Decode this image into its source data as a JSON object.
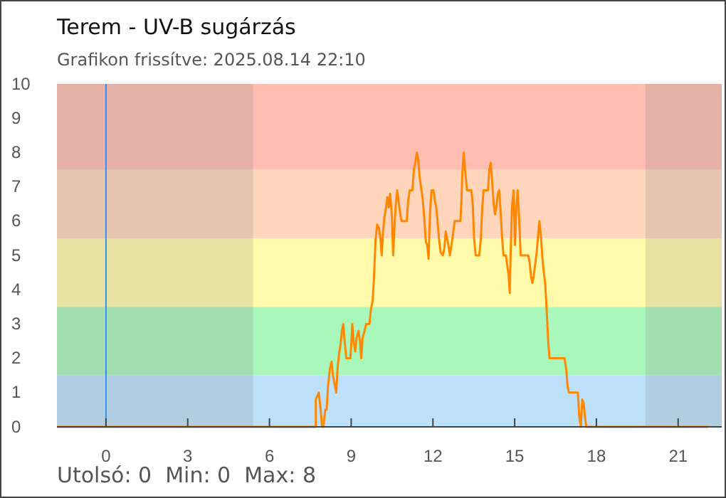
{
  "chart_data": {
    "type": "line",
    "title": "Terem - UV-B sugárzás",
    "subtitle": "Grafikon frissítve: 2025.08.14 22:10",
    "annotations": [
      "Utolsó: 0  Min: 0  Max: 8"
    ],
    "xlim": [
      -1.8,
      22.6
    ],
    "xticks": [
      0,
      3,
      6,
      9,
      12,
      15,
      18,
      21
    ],
    "ylim": [
      0,
      10
    ],
    "yticks": [
      0,
      1,
      2,
      3,
      4,
      5,
      6,
      7,
      8,
      9,
      10
    ],
    "grid": false,
    "line_style": "solid",
    "marker": "none",
    "bands": [
      {
        "axis": "y",
        "from": 0,
        "to": 1.5,
        "color": "#bde0fb"
      },
      {
        "axis": "y",
        "from": 1.5,
        "to": 3.5,
        "color": "#aaf7bb"
      },
      {
        "axis": "y",
        "from": 3.5,
        "to": 5.5,
        "color": "#fffbaa"
      },
      {
        "axis": "y",
        "from": 5.5,
        "to": 7.5,
        "color": "#ffd5bc"
      },
      {
        "axis": "y",
        "from": 7.5,
        "to": 10,
        "color": "#ffbcb0"
      },
      {
        "axis": "x",
        "from": -1.8,
        "to": 5.4,
        "color": "#8a8a8a"
      },
      {
        "axis": "x",
        "from": 19.8,
        "to": 22.6,
        "color": "#8a8a8a"
      }
    ],
    "ref_lines": [
      {
        "axis": "x",
        "value": 0,
        "color": "#3a8ee6"
      }
    ],
    "series": [
      {
        "color": "#ff8800",
        "x": [
          -1.8,
          7.7,
          7.7,
          7.81,
          7.88,
          7.93,
          7.98,
          8.05,
          8.1,
          8.15,
          8.22,
          8.28,
          8.33,
          8.4,
          8.45,
          8.5,
          8.55,
          8.61,
          8.66,
          8.71,
          8.76,
          8.82,
          8.97,
          9.01,
          9.04,
          9.09,
          9.15,
          9.2,
          9.27,
          9.32,
          9.37,
          9.42,
          9.49,
          9.55,
          9.67,
          9.72,
          9.79,
          9.84,
          9.89,
          9.95,
          10.02,
          10.07,
          10.12,
          10.17,
          10.22,
          10.28,
          10.33,
          10.38,
          10.43,
          10.49,
          10.54,
          10.59,
          10.64,
          10.69,
          10.75,
          10.8,
          10.85,
          11.04,
          11.09,
          11.15,
          11.25,
          11.3,
          11.35,
          11.41,
          11.46,
          11.51,
          11.58,
          11.63,
          11.69,
          11.74,
          11.79,
          11.84,
          11.89,
          11.95,
          12.02,
          12.07,
          12.12,
          12.17,
          12.22,
          12.28,
          12.36,
          12.42,
          12.47,
          12.52,
          12.57,
          12.62,
          12.68,
          12.75,
          12.8,
          13.01,
          13.04,
          13.08,
          13.13,
          13.18,
          13.25,
          13.41,
          13.46,
          13.51,
          13.57,
          13.7,
          13.76,
          13.81,
          13.86,
          14.02,
          14.07,
          14.12,
          14.17,
          14.23,
          14.28,
          14.33,
          14.38,
          14.43,
          14.49,
          14.54,
          14.59,
          14.68,
          14.73,
          14.78,
          14.82,
          14.85,
          14.9,
          14.96,
          15.01,
          15.06,
          15.11,
          15.17,
          15.22,
          15.5,
          15.55,
          15.6,
          15.65,
          15.7,
          15.76,
          15.81,
          15.86,
          15.91,
          15.97,
          16.02,
          16.07,
          16.12,
          16.17,
          16.23,
          16.28,
          16.83,
          16.89,
          16.94,
          16.99,
          17.32,
          17.37,
          17.43,
          17.48,
          17.53,
          17.58,
          17.63,
          22.1
        ],
        "values": [
          0,
          0,
          0.8,
          1,
          0.5,
          0,
          0,
          0.5,
          0.5,
          1.2,
          1.7,
          1.9,
          1.5,
          1.2,
          1,
          1.7,
          2.1,
          2.4,
          2.8,
          3,
          2.5,
          2,
          2,
          2.5,
          3,
          2.5,
          2.2,
          2.6,
          2.8,
          2.5,
          2,
          2.6,
          2.8,
          3,
          3,
          3.4,
          3.7,
          4.4,
          5.4,
          5.9,
          5.8,
          5.5,
          5,
          5.7,
          6.1,
          6.4,
          6.7,
          6.4,
          6.8,
          6.2,
          5,
          5.9,
          6.5,
          6.9,
          6.5,
          6.2,
          6,
          6,
          6.6,
          6.9,
          6.9,
          7.5,
          7.7,
          8,
          7.8,
          7.3,
          6.9,
          6.6,
          6,
          5.4,
          5.3,
          4.9,
          6.2,
          6.9,
          6.9,
          6.6,
          6.4,
          6,
          5.5,
          5.1,
          5,
          5.2,
          5.7,
          5.5,
          5.3,
          5,
          5.3,
          5.7,
          6,
          6,
          6.5,
          7.4,
          8,
          7.5,
          6.9,
          6.9,
          6.5,
          5.5,
          5,
          5,
          5.5,
          6.4,
          6.9,
          6.9,
          7.5,
          7.7,
          7.2,
          6.5,
          6.2,
          6.4,
          6.8,
          6.9,
          6.2,
          5.5,
          5,
          5,
          4.7,
          4.4,
          3.9,
          5,
          6.4,
          6.9,
          5.3,
          6.4,
          6.9,
          6,
          5,
          5,
          4.8,
          4.4,
          4.2,
          4.4,
          4.8,
          5.1,
          5.6,
          6,
          5.5,
          4.9,
          4.5,
          4.2,
          3.5,
          2.5,
          2,
          2,
          1.7,
          1.2,
          1,
          1,
          0.3,
          0,
          0.8,
          0.7,
          0.3,
          0,
          0
        ]
      }
    ]
  }
}
